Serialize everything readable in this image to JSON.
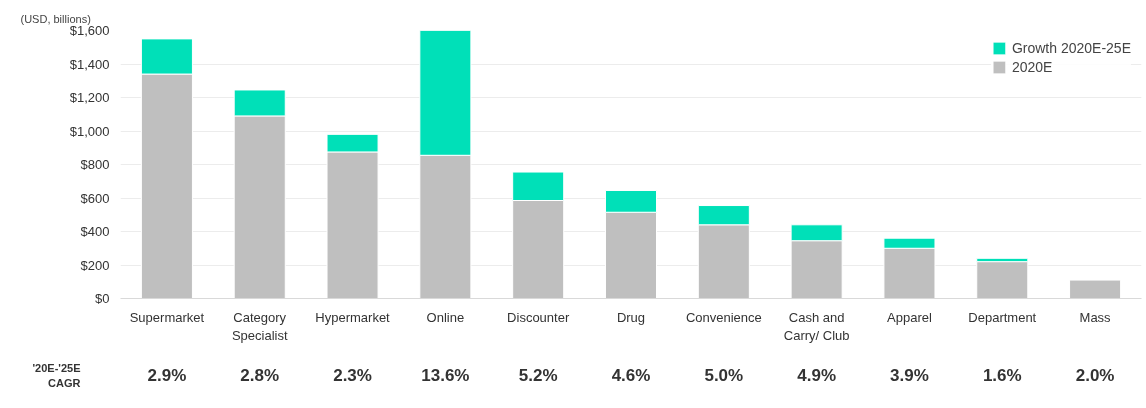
{
  "chart_data": {
    "type": "bar",
    "stacked": true,
    "ylabel": "(USD, billions)",
    "categories": [
      "Supermarket",
      "Category Specialist",
      "Hypermarket",
      "Online",
      "Discounter",
      "Drug",
      "Convenience",
      "Cash and Carry/ Club",
      "Apparel",
      "Department",
      "Mass"
    ],
    "series": [
      {
        "name": "2020E",
        "color": "#bfbfbf",
        "values": [
          1340,
          1090,
          875,
          855,
          585,
          515,
          440,
          345,
          300,
          220,
          110
        ]
      },
      {
        "name": "Growth 2020E-25E",
        "color": "#00e0b8",
        "values": [
          210,
          155,
          105,
          745,
          170,
          130,
          115,
          95,
          60,
          20,
          null
        ]
      }
    ],
    "ylim": [
      0,
      1600
    ],
    "yticks": [
      {
        "value": 0,
        "label": "$0"
      },
      {
        "value": 200,
        "label": "$200"
      },
      {
        "value": 400,
        "label": "$400"
      },
      {
        "value": 600,
        "label": "$600"
      },
      {
        "value": 800,
        "label": "$800"
      },
      {
        "value": 1000,
        "label": "$1,000"
      },
      {
        "value": 1200,
        "label": "$1,200"
      },
      {
        "value": 1400,
        "label": "$1,400"
      },
      {
        "value": 1600,
        "label": "$1,600"
      }
    ],
    "grid": "y",
    "legend": "top right",
    "annotations": [
      "'20E-'25E CAGR",
      "2.9%",
      "2.8%",
      "2.3%",
      "13.6%",
      "5.2%",
      "4.6%",
      "5.0%",
      "4.9%",
      "3.9%",
      "1.6%",
      "2.0%"
    ]
  }
}
